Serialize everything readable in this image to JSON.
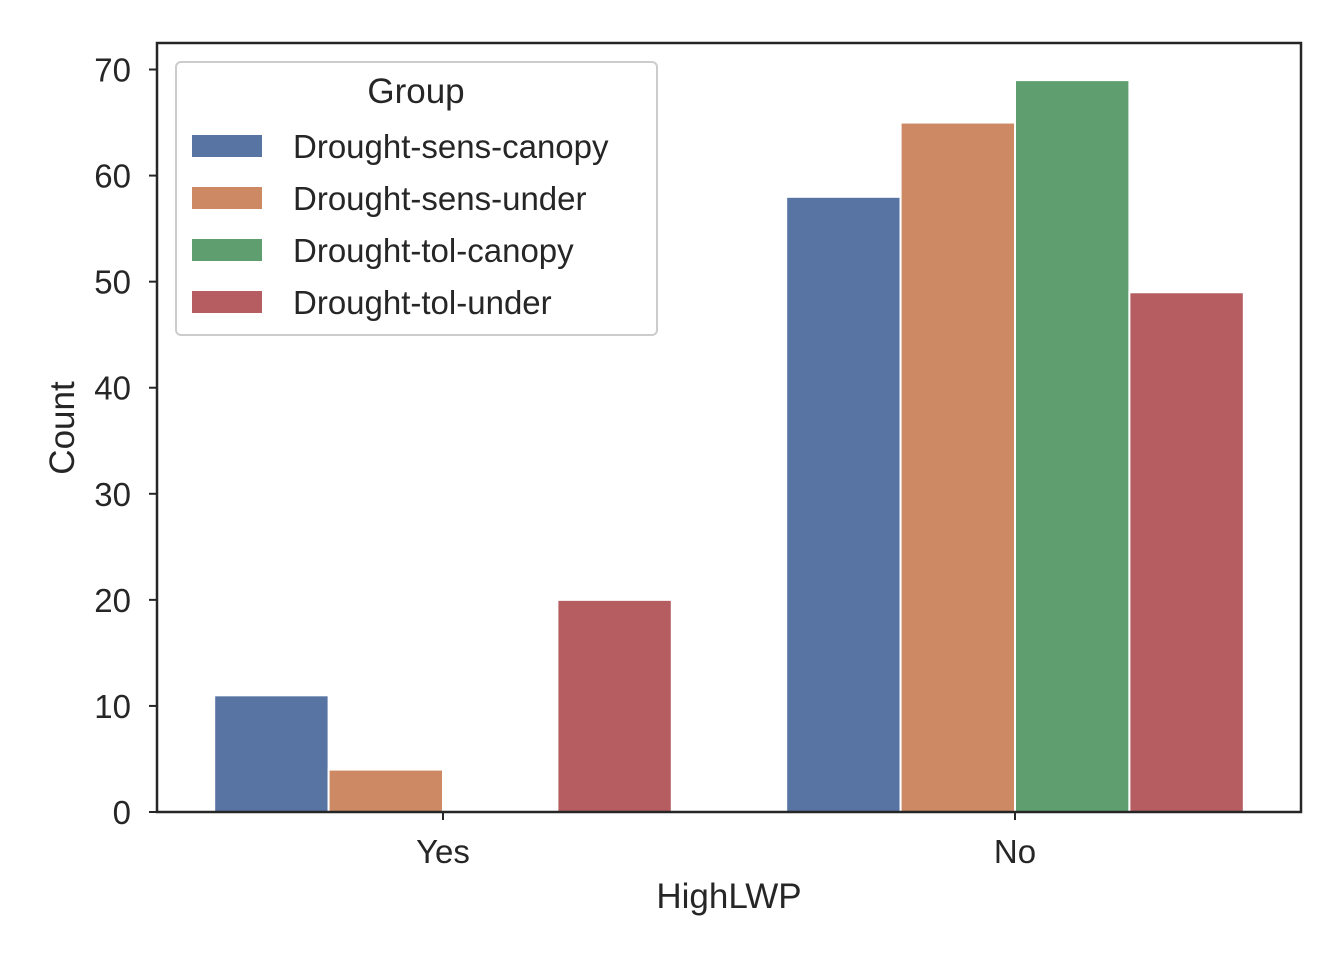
{
  "chart_data": {
    "type": "bar",
    "title": "",
    "xlabel": "HighLWP",
    "ylabel": "Count",
    "categories": [
      "Yes",
      "No"
    ],
    "ylim": [
      0,
      72.5
    ],
    "yticks": [
      0,
      10,
      20,
      30,
      40,
      50,
      60,
      70
    ],
    "grid": false,
    "legend": {
      "title": "Group",
      "placement": "top-left"
    },
    "series": [
      {
        "name": "Drought-sens-canopy",
        "color": "#5874a3",
        "values": [
          11,
          58
        ]
      },
      {
        "name": "Drought-sens-under",
        "color": "#cc8963",
        "values": [
          4,
          65
        ]
      },
      {
        "name": "Drought-tol-canopy",
        "color": "#5f9e6e",
        "values": [
          0,
          69
        ]
      },
      {
        "name": "Drought-tol-under",
        "color": "#b55d60",
        "values": [
          20,
          49
        ]
      }
    ]
  }
}
